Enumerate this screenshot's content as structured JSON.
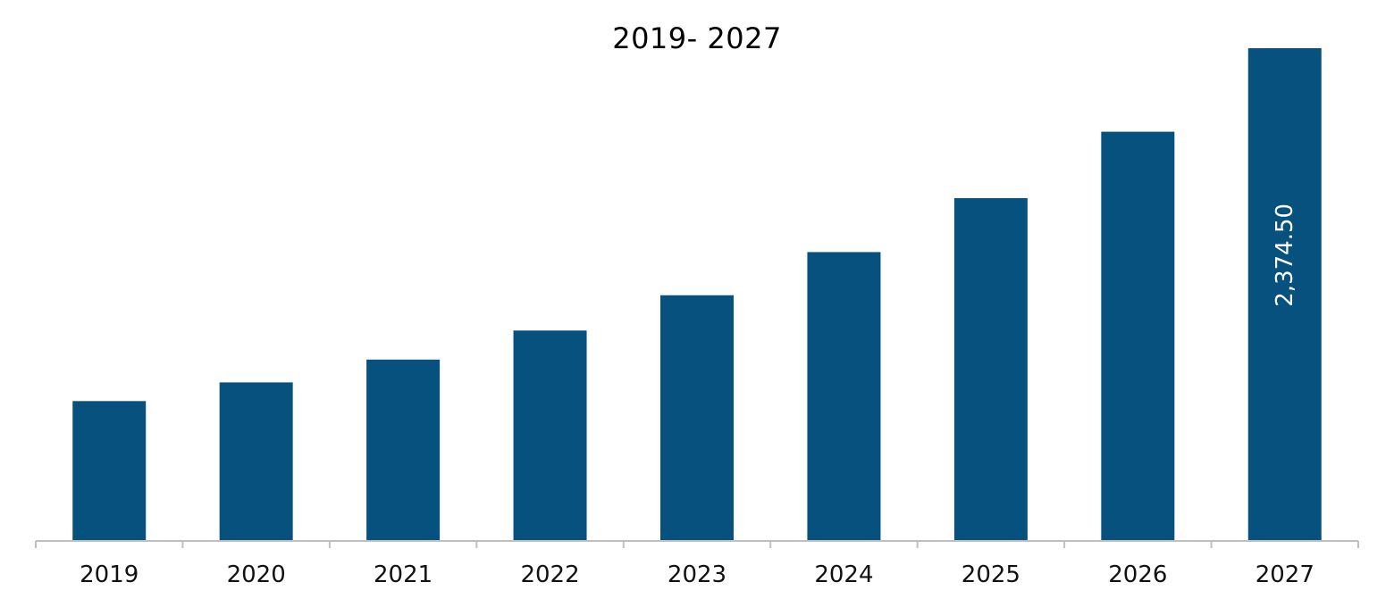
{
  "chart_data": {
    "type": "bar",
    "title": "2019- 2027",
    "xlabel": "",
    "ylabel": "",
    "categories": [
      "2019",
      "2020",
      "2021",
      "2022",
      "2023",
      "2024",
      "2025",
      "2026",
      "2027"
    ],
    "values": [
      674,
      764,
      874,
      1014,
      1184,
      1392,
      1652,
      1972,
      2374.5
    ],
    "data_labels": [
      "",
      "",
      "",
      "",
      "",
      "",
      "",
      "",
      "2,374.50"
    ],
    "ylim": [
      0,
      2374.5
    ],
    "grid": false,
    "legend": "none",
    "colors": {
      "bar": "#07517E",
      "axis": "#BFBFBF",
      "label_on_bar": "#FFFFFF"
    }
  }
}
